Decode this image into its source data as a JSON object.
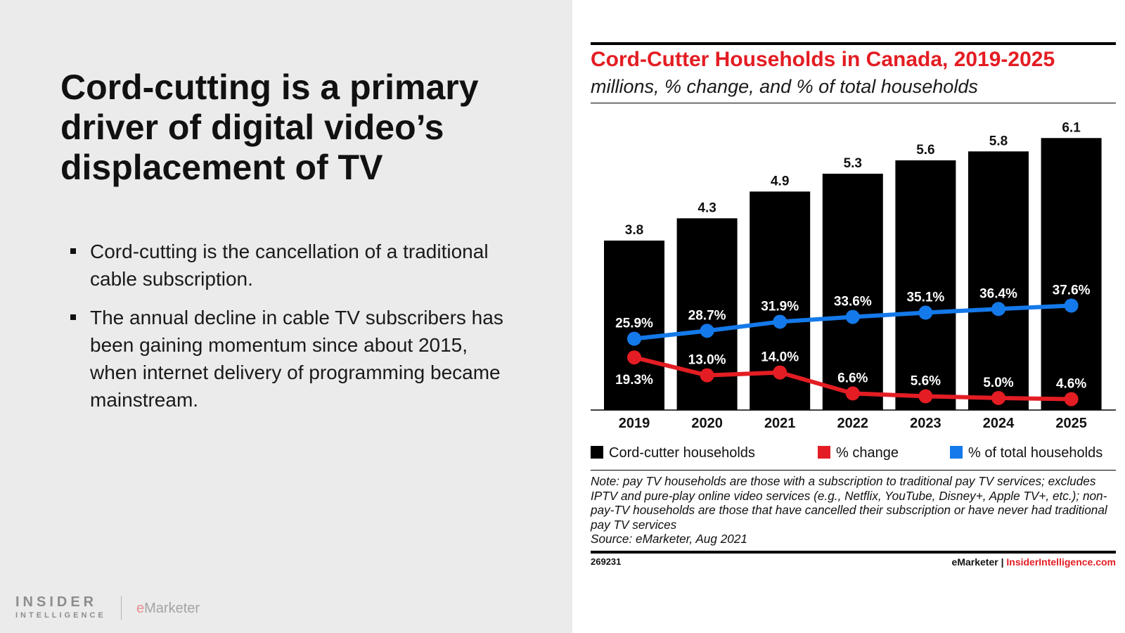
{
  "slide": {
    "headline": "Cord-cutting is a primary driver of digital video’s displacement of TV",
    "bullets": [
      "Cord-cutting is the cancellation of a traditional cable subscription.",
      "The annual decline in cable TV subscribers has been gaining momentum since about 2015, when internet delivery of programming became mainstream."
    ],
    "logos": {
      "insider_line1": "INSIDER",
      "insider_line2": "INTELLIGENCE",
      "emarketer_e": "e",
      "emarketer_rest": "Marketer"
    }
  },
  "chart_data": {
    "type": "bar",
    "title": "Cord-Cutter Households in Canada, 2019-2025",
    "subtitle": "millions, % change, and % of total households",
    "categories": [
      "2019",
      "2020",
      "2021",
      "2022",
      "2023",
      "2024",
      "2025"
    ],
    "series": [
      {
        "name": "Cord-cutter households",
        "type": "bar",
        "color": "#000000",
        "values": [
          3.8,
          4.3,
          4.9,
          5.3,
          5.6,
          5.8,
          6.1
        ],
        "labels": [
          "3.8",
          "4.3",
          "4.9",
          "5.3",
          "5.6",
          "5.8",
          "6.1"
        ]
      },
      {
        "name": "% change",
        "type": "line",
        "color": "#e31d23",
        "values": [
          19.3,
          13.0,
          14.0,
          6.6,
          5.6,
          5.0,
          4.6
        ],
        "labels": [
          "19.3%",
          "13.0%",
          "14.0%",
          "6.6%",
          "5.6%",
          "5.0%",
          "4.6%"
        ]
      },
      {
        "name": "% of total households",
        "type": "line",
        "color": "#1479ea",
        "values": [
          25.9,
          28.7,
          31.9,
          33.6,
          35.1,
          36.4,
          37.6
        ],
        "labels": [
          "25.9%",
          "28.7%",
          "31.9%",
          "33.6%",
          "35.1%",
          "36.4%",
          "37.6%"
        ]
      }
    ],
    "legend_position": "bottom",
    "grid": false,
    "note": "Note: pay TV households are those with a subscription to traditional pay TV services; excludes IPTV and pure-play online video services (e.g., Netflix, YouTube, Disney+, Apple TV+, etc.); non-pay-TV households are those that have cancelled their subscription or have never had traditional pay TV services",
    "source": "Source: eMarketer, Aug 2021",
    "chart_id": "269231",
    "credit_left": "eMarketer",
    "credit_separator": "|",
    "credit_right": "InsiderIntelligence.com"
  }
}
